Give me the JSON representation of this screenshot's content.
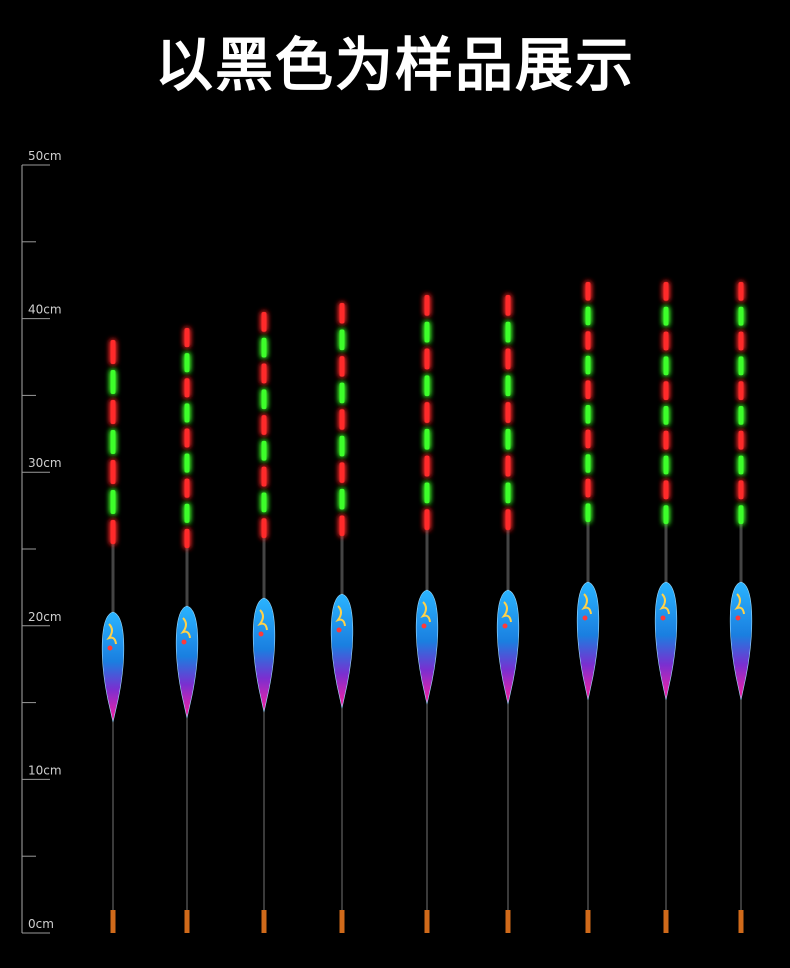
{
  "title": "以黑色为样品展示",
  "ruler": {
    "labels": [
      "0cm",
      "10cm",
      "20cm",
      "30cm",
      "40cm",
      "50cm"
    ],
    "color": "#bbbbbb"
  },
  "floats": {
    "count": 9,
    "red_color": "#ff2a2a",
    "green_color": "#3cff2a",
    "body_top_color": "#2aa8ff",
    "body_bottom_color": "#e0208f",
    "tail_color": "#d06a1a"
  }
}
